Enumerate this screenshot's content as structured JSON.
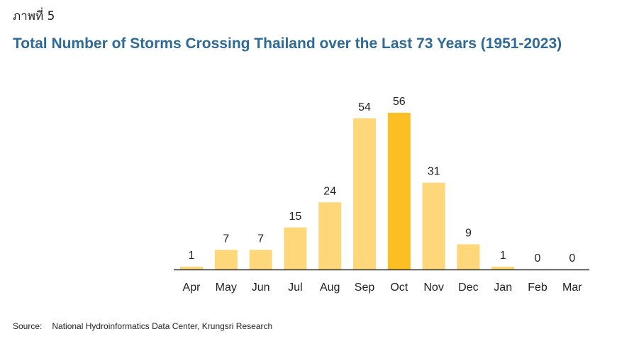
{
  "figure_label": "ภาพที่ 5",
  "source": {
    "label": "Source:",
    "text": "National Hydroinformatics Data Center, Krungsri Research"
  },
  "colors": {
    "bar": "#fdd77a",
    "highlight": "#fbbf24",
    "title": "#2e6a97",
    "axis": "#333333"
  },
  "chart_data": {
    "type": "bar",
    "title": "Total Number of Storms Crossing Thailand over the Last 73 Years (1951-2023)",
    "xlabel": "",
    "ylabel": "",
    "categories": [
      "Apr",
      "May",
      "Jun",
      "Jul",
      "Aug",
      "Sep",
      "Oct",
      "Nov",
      "Dec",
      "Jan",
      "Feb",
      "Mar"
    ],
    "values": [
      1,
      7,
      7,
      15,
      24,
      54,
      56,
      31,
      9,
      1,
      0,
      0
    ],
    "highlight_category": "Oct",
    "ylim": [
      0,
      56
    ],
    "grid": false,
    "legend": "none",
    "data_labels": true
  }
}
